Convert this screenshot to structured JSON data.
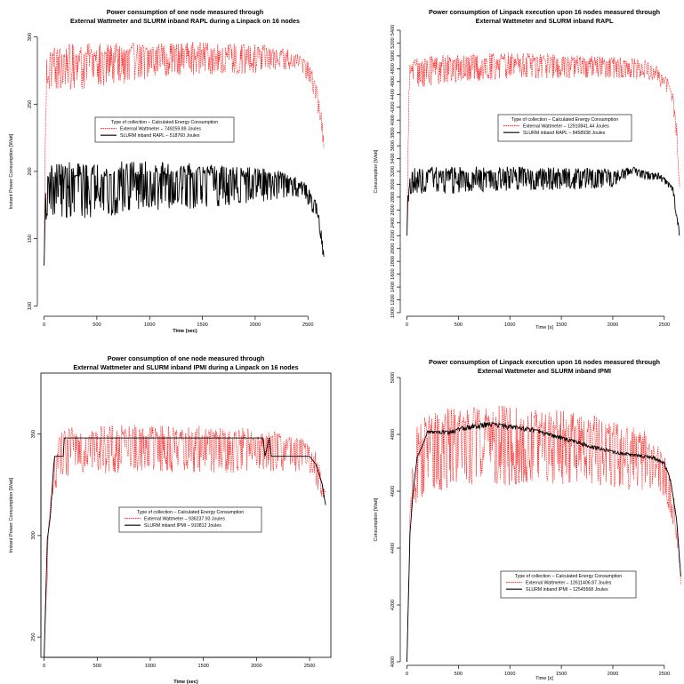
{
  "chart_data": [
    {
      "type": "line",
      "title_lines": [
        "Power consumption of one node measured through",
        "External Wattmeter and SLURM inband RAPL during a Linpack on 16 nodes"
      ],
      "xlabel": "Time (sec)",
      "ylabel": "Instant Power Consumption [Watt]",
      "xlim": [
        -30,
        2700
      ],
      "ylim": [
        95,
        305
      ],
      "xticks": [
        0,
        500,
        1000,
        1500,
        2000,
        2500
      ],
      "yticks": [
        100,
        150,
        200,
        250,
        300
      ],
      "ytick_labels": [
        "100",
        "150",
        "200",
        "250",
        "300"
      ],
      "legend": {
        "title": "Type of collection – Calculated Energy Consumption",
        "entries": [
          "External Wattmeter –  749259.89 Joules",
          "SLURM inband RAPL –  518760 Joules"
        ]
      },
      "series": [
        {
          "name": "External Wattmeter",
          "color": "#ff0000",
          "dashed": true,
          "x": [
            0,
            10,
            25,
            60,
            300,
            600,
            1000,
            1500,
            2000,
            2300,
            2450,
            2520,
            2580,
            2620,
            2650
          ],
          "y": [
            130,
            215,
            280,
            285,
            286,
            287,
            289,
            290,
            289,
            288,
            282,
            275,
            262,
            245,
            222
          ],
          "spread": [
            0,
            2,
            20,
            24,
            26,
            24,
            20,
            18,
            16,
            12,
            10,
            12,
            14,
            12,
            6
          ]
        },
        {
          "name": "SLURM inband RAPL",
          "color": "#000000",
          "dashed": false,
          "x": [
            0,
            10,
            25,
            60,
            300,
            600,
            1000,
            1500,
            2000,
            2300,
            2450,
            2520,
            2580,
            2620,
            2650
          ],
          "y": [
            130,
            170,
            195,
            196,
            196,
            197,
            198,
            197,
            196,
            195,
            190,
            183,
            175,
            160,
            136
          ],
          "spread": [
            0,
            12,
            28,
            30,
            32,
            30,
            28,
            24,
            20,
            14,
            10,
            10,
            12,
            10,
            4
          ]
        }
      ]
    },
    {
      "type": "line",
      "title_lines": [
        "Power consumption of Linpack execution upon 16 nodes measured through",
        "External Wattmeter and SLURM inband RAPL"
      ],
      "xlabel": "Time [s]",
      "ylabel": "Consumption [Watt]",
      "xlim": [
        -30,
        2700
      ],
      "ylim": [
        1000,
        5400
      ],
      "xticks": [
        0,
        500,
        1000,
        1500,
        2000,
        2500
      ],
      "yticks": [
        1000,
        1200,
        1400,
        1600,
        1800,
        2000,
        2200,
        2400,
        2600,
        2800,
        3000,
        3200,
        3400,
        3600,
        3800,
        4000,
        4200,
        4400,
        4600,
        4800,
        5000,
        5200,
        5400
      ],
      "ytick_labels": [
        "1000",
        "1200",
        "1400",
        "1600",
        "1800",
        "2000",
        "2200",
        "2400",
        "2600",
        "2800",
        "3000",
        "3200",
        "3400",
        "3600",
        "3800",
        "4000",
        "4200",
        "4400",
        "4600",
        "4800",
        "5000",
        "5200",
        "5400"
      ],
      "legend": {
        "title": "Type of collection – Calculated Energy Consumption",
        "entries": [
          "External Wattmeter –  12910841.44 Joules",
          "SLURM inband RAPL –  8458938 Joules"
        ]
      },
      "series": [
        {
          "name": "External Wattmeter",
          "color": "#ff0000",
          "dashed": true,
          "x": [
            0,
            10,
            25,
            60,
            300,
            600,
            1000,
            1500,
            2000,
            2300,
            2450,
            2520,
            2580,
            2620,
            2650
          ],
          "y": [
            2300,
            3500,
            4800,
            4850,
            4900,
            4920,
            4950,
            4930,
            4900,
            4870,
            4750,
            4600,
            4400,
            3900,
            3000
          ],
          "spread": [
            0,
            200,
            300,
            350,
            350,
            320,
            300,
            280,
            260,
            220,
            200,
            220,
            260,
            250,
            120
          ]
        },
        {
          "name": "SLURM inband RAPL",
          "color": "#000000",
          "dashed": false,
          "x": [
            0,
            10,
            25,
            60,
            300,
            600,
            1000,
            1500,
            2000,
            2200,
            2300,
            2450,
            2520,
            2580,
            2620,
            2650
          ],
          "y": [
            2200,
            2800,
            3100,
            3150,
            3160,
            3170,
            3180,
            3170,
            3160,
            3250,
            3170,
            3150,
            3050,
            2950,
            2600,
            2200
          ],
          "spread": [
            0,
            150,
            280,
            300,
            320,
            300,
            280,
            260,
            220,
            80,
            120,
            80,
            80,
            100,
            150,
            40
          ]
        }
      ]
    },
    {
      "type": "line",
      "title_lines": [
        "Power consumption of one node measured through",
        "External Wattmeter and SLURM inband IPMI during a Linpack on 16 nodes"
      ],
      "xlabel": "Time (sec)",
      "ylabel": "Instant Power Consumption [Watt]",
      "xlim": [
        -30,
        2700
      ],
      "ylim": [
        240,
        380
      ],
      "xticks": [
        0,
        500,
        1000,
        1500,
        2000,
        2500
      ],
      "yticks": [
        250,
        300,
        350
      ],
      "ytick_labels": [
        "250",
        "300",
        "350"
      ],
      "legend": {
        "title": "Type of collection – Calculated Energy Consumption",
        "entries": [
          "External Wattmeter –  936237.93 Joules",
          "SLURM inband IPMI –  910812 Joules"
        ]
      },
      "series": [
        {
          "name": "External Wattmeter",
          "color": "#ff0000",
          "dashed": true,
          "x": [
            0,
            20,
            40,
            80,
            150,
            300,
            600,
            1000,
            1500,
            2000,
            2300,
            2450,
            2550,
            2600,
            2650
          ],
          "y": [
            240,
            270,
            300,
            330,
            345,
            348,
            348,
            349,
            348,
            347,
            346,
            343,
            338,
            330,
            320
          ],
          "spread": [
            0,
            6,
            10,
            12,
            16,
            18,
            18,
            18,
            17,
            16,
            14,
            12,
            12,
            10,
            6
          ]
        },
        {
          "name": "SLURM inband IPMI",
          "color": "#000000",
          "dashed": false,
          "x": [
            0,
            30,
            60,
            90,
            100,
            180,
            190,
            2060,
            2080,
            2120,
            2140,
            2500,
            2560,
            2620,
            2650
          ],
          "y": [
            240,
            298,
            310,
            334,
            339,
            339,
            348,
            348,
            339,
            348,
            339,
            339,
            335,
            325,
            315
          ],
          "spread": [
            0,
            0,
            0,
            0,
            0,
            0,
            0,
            0,
            0,
            0,
            0,
            0,
            0,
            0,
            0
          ]
        }
      ]
    },
    {
      "type": "line",
      "title_lines": [
        "Power consumption of Linpack execution upon 16 nodes measured through",
        "External Wattmeter and SLURM inband IPMI"
      ],
      "xlabel": "Time [s]",
      "ylabel": "Consumption [Watt]",
      "xlim": [
        -30,
        2700
      ],
      "ylim": [
        4000,
        5000
      ],
      "xticks": [
        0,
        500,
        1000,
        1500,
        2000,
        2500
      ],
      "yticks": [
        4000,
        4200,
        4400,
        4600,
        4800,
        5000
      ],
      "ytick_labels": [
        "4000",
        "4200",
        "4400",
        "4600",
        "4800",
        "5000"
      ],
      "legend": {
        "title": "Type of collection – Calculated Energy Consumption",
        "entries": [
          "External Wattmeter –  12611406.87 Joules",
          "SLURM inband IPMI –  12545568 Joules"
        ]
      },
      "series": [
        {
          "name": "External Wattmeter",
          "color": "#ff0000",
          "dashed": true,
          "x": [
            0,
            30,
            60,
            100,
            200,
            400,
            700,
            1000,
            1300,
            1700,
            2000,
            2300,
            2450,
            2550,
            2620,
            2660
          ],
          "y": [
            4000,
            4500,
            4700,
            4760,
            4800,
            4820,
            4830,
            4830,
            4820,
            4810,
            4790,
            4760,
            4720,
            4650,
            4500,
            4300
          ],
          "spread": [
            0,
            80,
            150,
            200,
            210,
            210,
            210,
            210,
            200,
            190,
            180,
            160,
            130,
            120,
            80,
            40
          ]
        },
        {
          "name": "SLURM inband IPMI",
          "color": "#000000",
          "dashed": false,
          "x": [
            0,
            30,
            60,
            100,
            150,
            200,
            400,
            600,
            800,
            1000,
            1200,
            1400,
            1600,
            1800,
            2000,
            2200,
            2400,
            2500,
            2560,
            2620,
            2660
          ],
          "y": [
            4000,
            4450,
            4600,
            4720,
            4760,
            4810,
            4810,
            4830,
            4840,
            4830,
            4820,
            4800,
            4780,
            4760,
            4740,
            4730,
            4720,
            4700,
            4640,
            4500,
            4300
          ],
          "spread": [
            0,
            0,
            0,
            0,
            0,
            6,
            10,
            14,
            16,
            14,
            12,
            10,
            10,
            10,
            8,
            8,
            8,
            8,
            6,
            4,
            0
          ]
        }
      ]
    }
  ]
}
